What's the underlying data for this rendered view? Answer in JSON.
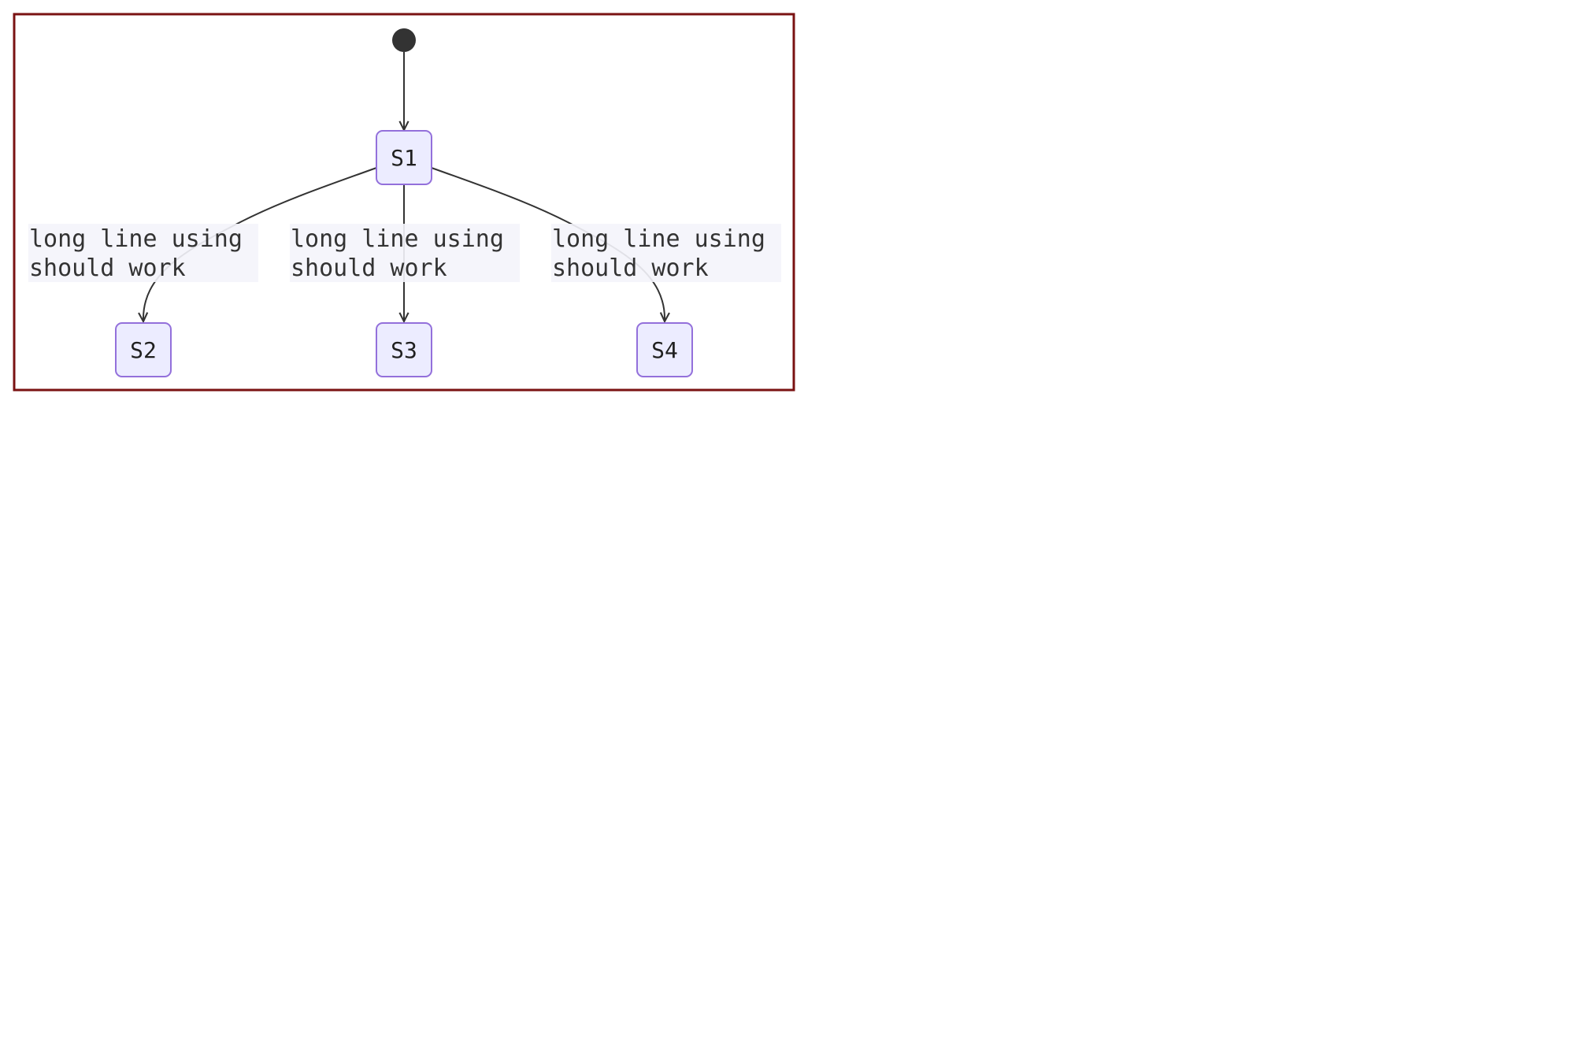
{
  "diagram": {
    "type": "state",
    "start": {
      "id": "start"
    },
    "states": [
      {
        "id": "S1",
        "label": "S1"
      },
      {
        "id": "S2",
        "label": "S2"
      },
      {
        "id": "S3",
        "label": "S3"
      },
      {
        "id": "S4",
        "label": "S4"
      }
    ],
    "transitions": [
      {
        "from": "start",
        "to": "S1"
      },
      {
        "from": "S1",
        "to": "S2",
        "label": [
          "long line using",
          "should work"
        ]
      },
      {
        "from": "S1",
        "to": "S3",
        "label": [
          "long line using",
          "should work"
        ]
      },
      {
        "from": "S1",
        "to": "S4",
        "label": [
          "long line using",
          "should work"
        ]
      }
    ],
    "colors": {
      "frame": "#7a1212",
      "state_fill": "#ececff",
      "state_stroke": "#9370db",
      "edge": "#333333",
      "label_bg": "#f4f4fb",
      "start_fill": "#333333"
    }
  }
}
